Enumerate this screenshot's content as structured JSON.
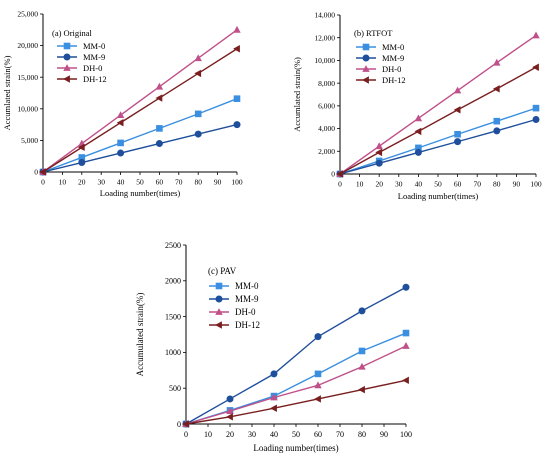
{
  "colors": {
    "MM-0": "#3a8fe0",
    "MM-9": "#1f4f9c",
    "DH-0": "#c0508a",
    "DH-12": "#7a1f20",
    "axis": "#000000"
  },
  "markers": {
    "MM-0": "square",
    "MM-9": "circle",
    "DH-0": "triangle-up",
    "DH-12": "triangle-left"
  },
  "chart_data": [
    {
      "type": "line",
      "title": "(a) Original",
      "xlabel": "Loading number(times)",
      "ylabel": "Accumlated strain(%)",
      "xlim": [
        0,
        100
      ],
      "ylim": [
        0,
        25000
      ],
      "xticks": [
        0,
        10,
        20,
        30,
        40,
        50,
        60,
        70,
        80,
        90,
        100
      ],
      "yticks": [
        0,
        5000,
        10000,
        15000,
        20000,
        25000
      ],
      "ytick_labels": [
        "0",
        "5,000",
        "10,000",
        "15,000",
        "20,000",
        "25,000"
      ],
      "grid": false,
      "legend_position": "top-left",
      "x": [
        0,
        20,
        40,
        60,
        80,
        100
      ],
      "series": [
        {
          "name": "MM-0",
          "values": [
            0,
            2300,
            4600,
            6900,
            9200,
            11600
          ]
        },
        {
          "name": "MM-9",
          "values": [
            0,
            1500,
            3000,
            4500,
            6000,
            7500
          ]
        },
        {
          "name": "DH-0",
          "values": [
            0,
            4500,
            9000,
            13500,
            18000,
            22500
          ]
        },
        {
          "name": "DH-12",
          "values": [
            0,
            3900,
            7800,
            11700,
            15600,
            19500
          ]
        }
      ]
    },
    {
      "type": "line",
      "title": "(b) RTFOT",
      "xlabel": "Loading number(times)",
      "ylabel": "Accumlated strain(%)",
      "xlim": [
        0,
        100
      ],
      "ylim": [
        0,
        14000
      ],
      "xticks": [
        0,
        10,
        20,
        30,
        40,
        50,
        60,
        70,
        80,
        90,
        100
      ],
      "yticks": [
        0,
        2000,
        4000,
        6000,
        8000,
        10000,
        12000,
        14000
      ],
      "ytick_labels": [
        "0",
        "2,000",
        "4,000",
        "6,000",
        "8,000",
        "10,000",
        "12,000",
        "14,000"
      ],
      "grid": false,
      "legend_position": "top-left",
      "x": [
        0,
        20,
        40,
        60,
        80,
        100
      ],
      "series": [
        {
          "name": "MM-0",
          "values": [
            0,
            1150,
            2300,
            3500,
            4650,
            5800
          ]
        },
        {
          "name": "MM-9",
          "values": [
            0,
            950,
            1900,
            2850,
            3800,
            4800
          ]
        },
        {
          "name": "DH-0",
          "values": [
            0,
            2450,
            4900,
            7350,
            9800,
            12200
          ]
        },
        {
          "name": "DH-12",
          "values": [
            0,
            1900,
            3750,
            5650,
            7500,
            9400
          ]
        }
      ]
    },
    {
      "type": "line",
      "title": "(c) PAV",
      "xlabel": "Loading number(times)",
      "ylabel": "Accumulated strain(%)",
      "xlim": [
        0,
        100
      ],
      "ylim": [
        0,
        2500
      ],
      "xticks": [
        0,
        10,
        20,
        30,
        40,
        50,
        60,
        70,
        80,
        90,
        100
      ],
      "yticks": [
        0,
        500,
        1000,
        1500,
        2000,
        2500
      ],
      "ytick_labels": [
        "0",
        "500",
        "1000",
        "1500",
        "2000",
        "2500"
      ],
      "grid": false,
      "legend_position": "top-left",
      "x": [
        0,
        20,
        40,
        60,
        80,
        100
      ],
      "series": [
        {
          "name": "MM-0",
          "values": [
            0,
            190,
            390,
            700,
            1020,
            1270
          ]
        },
        {
          "name": "MM-9",
          "values": [
            0,
            350,
            700,
            1220,
            1580,
            1910
          ]
        },
        {
          "name": "DH-0",
          "values": [
            0,
            180,
            370,
            540,
            800,
            1090
          ]
        },
        {
          "name": "DH-12",
          "values": [
            0,
            100,
            220,
            350,
            480,
            610
          ]
        }
      ]
    }
  ]
}
